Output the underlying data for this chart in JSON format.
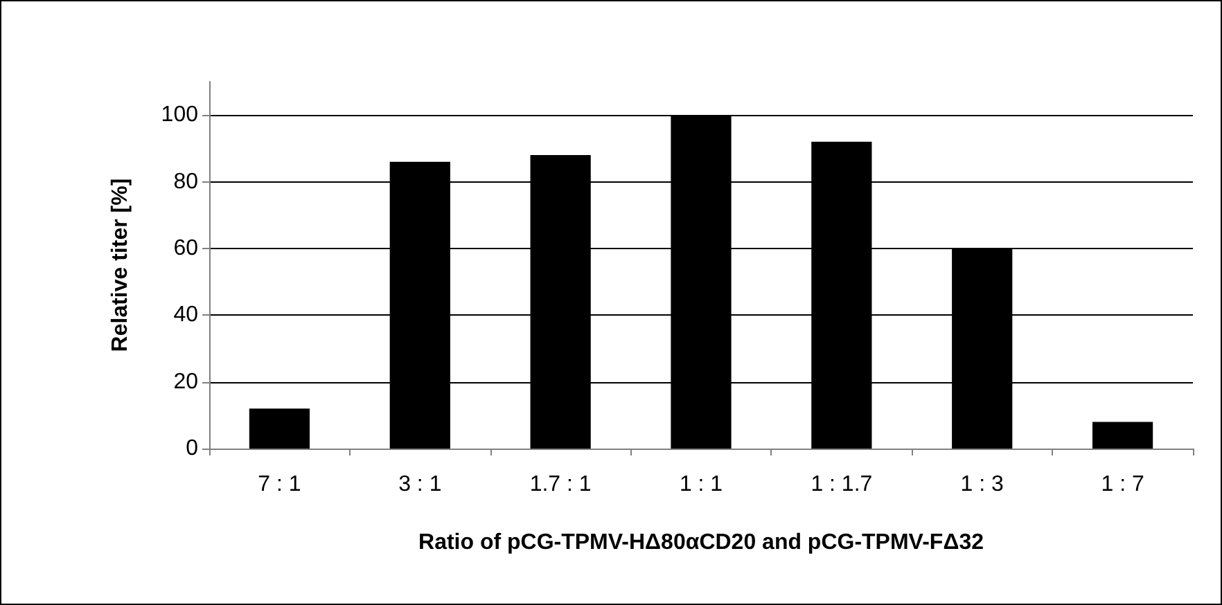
{
  "chart_data": {
    "type": "bar",
    "xlabel": "Ratio of pCG-TPMV-HΔ80αCD20 and pCG-TPMV-FΔ32",
    "ylabel": "Relative titer [%]",
    "categories": [
      "7 : 1",
      "3 : 1",
      "1.7 : 1",
      "1 : 1",
      "1 : 1.7",
      "1 : 3",
      "1 : 7"
    ],
    "values": [
      12,
      86,
      88,
      100,
      92,
      60,
      8
    ],
    "color": "#000000",
    "ylim": [
      0,
      110
    ],
    "yticks": [
      0,
      20,
      40,
      60,
      80,
      100
    ],
    "grid": "y"
  }
}
